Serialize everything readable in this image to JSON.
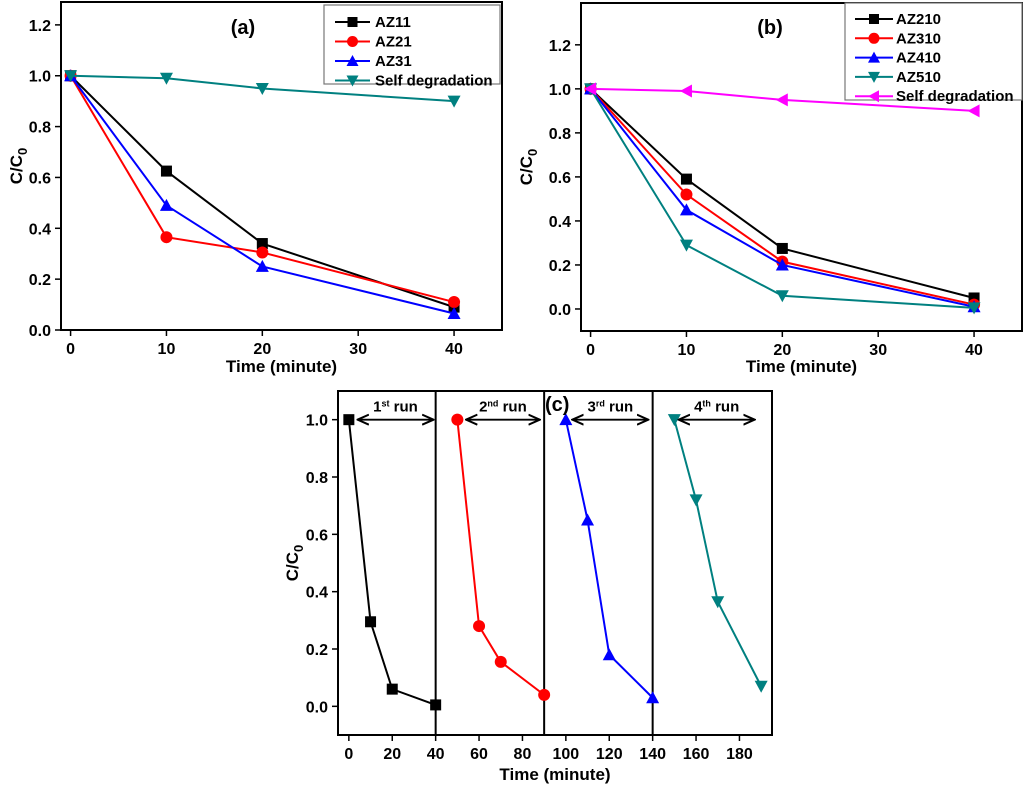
{
  "chart_data": [
    {
      "id": "a",
      "type": "line",
      "title": "(a)",
      "xlabel": "Time (minute)",
      "ylabel": "C/C0",
      "xlim": [
        -1,
        45
      ],
      "ylim": [
        0,
        1.29
      ],
      "xticks": [
        0,
        10,
        20,
        30,
        40
      ],
      "yticks": [
        0.0,
        0.2,
        0.4,
        0.6,
        0.8,
        1.0,
        1.2
      ],
      "legend_position": "top-right",
      "x": [
        0,
        10,
        20,
        40
      ],
      "series": [
        {
          "name": "AZ11",
          "color": "#000000",
          "marker": "square",
          "values": [
            1.0,
            0.625,
            0.34,
            0.09
          ]
        },
        {
          "name": "AZ21",
          "color": "#ff0000",
          "marker": "circle",
          "values": [
            1.0,
            0.365,
            0.305,
            0.11
          ]
        },
        {
          "name": "AZ31",
          "color": "#0000ff",
          "marker": "triangle-up",
          "values": [
            1.0,
            0.49,
            0.25,
            0.065
          ]
        },
        {
          "name": "Self degradation",
          "color": "#008080",
          "marker": "triangle-down",
          "values": [
            1.0,
            0.99,
            0.95,
            0.9
          ]
        }
      ]
    },
    {
      "id": "b",
      "type": "line",
      "title": "(b)",
      "xlabel": "Time (minute)",
      "ylabel": "C/C0",
      "xlim": [
        -1,
        45
      ],
      "ylim": [
        -0.1,
        1.39
      ],
      "xticks": [
        0,
        10,
        20,
        30,
        40
      ],
      "yticks": [
        0.0,
        0.2,
        0.4,
        0.6,
        0.8,
        1.0,
        1.2
      ],
      "legend_position": "top-right",
      "x": [
        0,
        10,
        20,
        40
      ],
      "series": [
        {
          "name": "AZ210",
          "color": "#000000",
          "marker": "square",
          "values": [
            1.0,
            0.59,
            0.275,
            0.05
          ]
        },
        {
          "name": "AZ310",
          "color": "#ff0000",
          "marker": "circle",
          "values": [
            1.0,
            0.52,
            0.215,
            0.02
          ]
        },
        {
          "name": "AZ410",
          "color": "#0000ff",
          "marker": "triangle-up",
          "values": [
            1.0,
            0.45,
            0.2,
            0.01
          ]
        },
        {
          "name": "AZ510",
          "color": "#008080",
          "marker": "triangle-down",
          "values": [
            1.0,
            0.29,
            0.06,
            0.005
          ]
        },
        {
          "name": "Self degradation",
          "color": "#ff00ff",
          "marker": "triangle-left",
          "values": [
            1.0,
            0.99,
            0.95,
            0.9
          ]
        }
      ]
    },
    {
      "id": "c",
      "type": "line",
      "title": "(c)",
      "xlabel": "Time (minute)",
      "ylabel": "C/C0",
      "xlim": [
        -5,
        195
      ],
      "ylim": [
        -0.1,
        1.1
      ],
      "xticks": [
        0,
        20,
        40,
        60,
        80,
        100,
        120,
        140,
        160,
        180
      ],
      "yticks": [
        0.0,
        0.2,
        0.4,
        0.6,
        0.8,
        1.0
      ],
      "separators": [
        40,
        90,
        140
      ],
      "series": [
        {
          "name": "1st run",
          "num": "1",
          "sup": "st",
          "rest": " run",
          "color": "#000000",
          "marker": "square",
          "x": [
            0,
            10,
            20,
            40
          ],
          "values": [
            1.0,
            0.295,
            0.06,
            0.005
          ],
          "arrow": [
            4,
            39
          ]
        },
        {
          "name": "2nd run",
          "num": "2",
          "sup": "nd",
          "rest": " run",
          "color": "#ff0000",
          "marker": "circle",
          "x": [
            50,
            60,
            70,
            90
          ],
          "values": [
            1.0,
            0.28,
            0.155,
            0.04
          ],
          "arrow": [
            54,
            88
          ]
        },
        {
          "name": "3rd run",
          "num": "3",
          "sup": "rd",
          "rest": " run",
          "color": "#0000ff",
          "marker": "triangle-up",
          "x": [
            100,
            110,
            120,
            140
          ],
          "values": [
            1.0,
            0.65,
            0.18,
            0.03
          ],
          "arrow": [
            103,
            138
          ]
        },
        {
          "name": "4th run",
          "num": "4",
          "sup": "th",
          "rest": " run",
          "color": "#008080",
          "marker": "triangle-down",
          "x": [
            150,
            160,
            170,
            190
          ],
          "values": [
            1.0,
            0.72,
            0.365,
            0.07
          ],
          "arrow": [
            152,
            187
          ]
        }
      ]
    }
  ]
}
